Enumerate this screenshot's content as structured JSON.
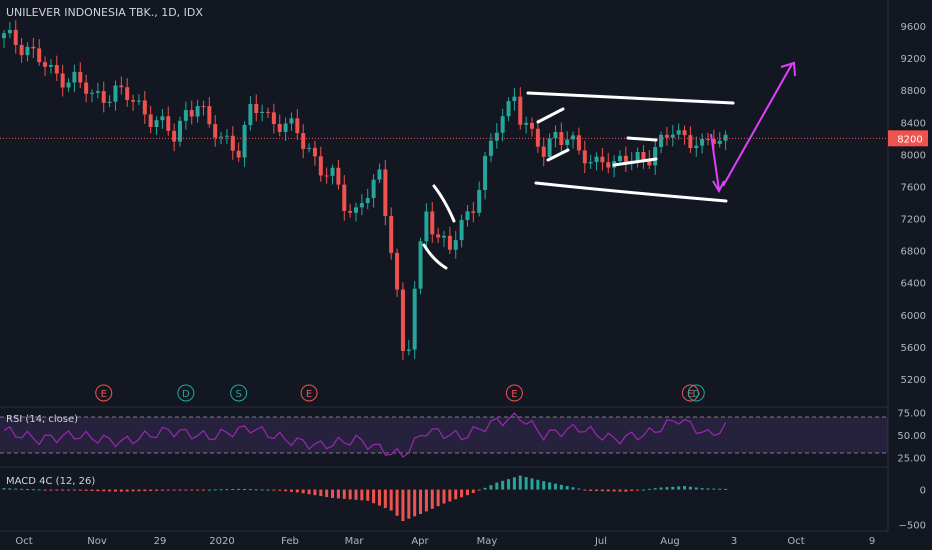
{
  "title": "UNILEVER INDONESIA TBK., 1D, IDX",
  "rsi_label": "RSI (14, close)",
  "macd_label": "MACD 4C (12, 26)",
  "last_price_label": "8200",
  "colors": {
    "background": "#131722",
    "up": "#26a69a",
    "down": "#ef5350",
    "rsi": "#9c27b0",
    "annotation_white": "#ffffff",
    "annotation_magenta": "#e040fb",
    "price_line": "#ef5350"
  },
  "chart_data": [
    {
      "type": "candlestick",
      "x_ticks": [
        "Oct",
        "Nov",
        "29",
        "2020",
        "Feb",
        "Mar",
        "Apr",
        "May",
        "Jul",
        "Aug",
        "3",
        "Oct",
        "9"
      ],
      "y_ticks": [
        5200,
        5600,
        6000,
        6400,
        6800,
        7200,
        7600,
        8000,
        8400,
        8800,
        9200,
        9600
      ],
      "ylim": [
        5000,
        9800
      ],
      "last_price": 8200,
      "path": [
        [
          0,
          9450
        ],
        [
          4,
          9350
        ],
        [
          8,
          9000
        ],
        [
          12,
          8950
        ],
        [
          15,
          8700
        ],
        [
          19,
          8800
        ],
        [
          22,
          8650
        ],
        [
          24,
          8550
        ],
        [
          27,
          8350
        ],
        [
          29,
          8200
        ],
        [
          31,
          8550
        ],
        [
          33,
          8650
        ],
        [
          35,
          8300
        ],
        [
          38,
          8200
        ],
        [
          40,
          8050
        ],
        [
          42,
          8500
        ],
        [
          44,
          8600
        ],
        [
          46,
          8400
        ],
        [
          48,
          8350
        ],
        [
          50,
          8250
        ],
        [
          52,
          8100
        ],
        [
          54,
          7800
        ],
        [
          56,
          7700
        ],
        [
          58,
          7400
        ],
        [
          60,
          7300
        ],
        [
          62,
          7500
        ],
        [
          64,
          7700
        ],
        [
          66,
          6900
        ],
        [
          67,
          6300
        ],
        [
          68,
          5500
        ],
        [
          69,
          5600
        ],
        [
          70,
          6300
        ],
        [
          72,
          7300
        ],
        [
          74,
          7000
        ],
        [
          76,
          6800
        ],
        [
          78,
          7100
        ],
        [
          80,
          7400
        ],
        [
          82,
          7900
        ],
        [
          84,
          8300
        ],
        [
          86,
          8600
        ],
        [
          87,
          8800
        ],
        [
          88,
          8500
        ],
        [
          90,
          8200
        ],
        [
          92,
          8000
        ],
        [
          94,
          8300
        ],
        [
          96,
          8200
        ],
        [
          98,
          8000
        ],
        [
          100,
          7900
        ],
        [
          102,
          8000
        ],
        [
          104,
          7800
        ],
        [
          106,
          7950
        ],
        [
          108,
          8000
        ],
        [
          110,
          7950
        ],
        [
          112,
          8100
        ],
        [
          114,
          8350
        ],
        [
          115,
          8300
        ],
        [
          117,
          8150
        ],
        [
          119,
          8050
        ],
        [
          121,
          8250
        ],
        [
          123,
          8200
        ]
      ],
      "events": [
        {
          "label": "E",
          "type": "earnings",
          "at": 17
        },
        {
          "label": "D",
          "type": "dividend",
          "at": 31
        },
        {
          "label": "S",
          "type": "split",
          "at": 40
        },
        {
          "label": "E",
          "type": "earnings",
          "at": 52
        },
        {
          "label": "E",
          "type": "earnings",
          "at": 87
        },
        {
          "label": "E",
          "type": "earnings",
          "at": 117
        },
        {
          "label": "D",
          "type": "dividend",
          "at": 118
        }
      ]
    },
    {
      "type": "line",
      "name": "RSI (14, close)",
      "y_ticks": [
        25,
        50,
        75
      ],
      "ylim": [
        20,
        80
      ],
      "bands": [
        30,
        70
      ],
      "path": [
        [
          0,
          55
        ],
        [
          6,
          45
        ],
        [
          12,
          50
        ],
        [
          20,
          42
        ],
        [
          28,
          55
        ],
        [
          35,
          48
        ],
        [
          42,
          58
        ],
        [
          48,
          45
        ],
        [
          54,
          38
        ],
        [
          60,
          45
        ],
        [
          66,
          30
        ],
        [
          68,
          28
        ],
        [
          72,
          55
        ],
        [
          78,
          48
        ],
        [
          84,
          65
        ],
        [
          88,
          70
        ],
        [
          92,
          50
        ],
        [
          98,
          58
        ],
        [
          104,
          45
        ],
        [
          110,
          52
        ],
        [
          115,
          68
        ],
        [
          120,
          50
        ],
        [
          123,
          58
        ]
      ]
    },
    {
      "type": "bar",
      "name": "MACD 4C (12, 26)",
      "y_ticks": [
        0,
        -500
      ],
      "ylim": [
        -550,
        280
      ],
      "path": [
        [
          0,
          20
        ],
        [
          10,
          -10
        ],
        [
          20,
          -30
        ],
        [
          30,
          -10
        ],
        [
          40,
          10
        ],
        [
          45,
          0
        ],
        [
          50,
          -40
        ],
        [
          56,
          -120
        ],
        [
          62,
          -160
        ],
        [
          66,
          -300
        ],
        [
          68,
          -450
        ],
        [
          71,
          -350
        ],
        [
          75,
          -200
        ],
        [
          80,
          -50
        ],
        [
          84,
          100
        ],
        [
          88,
          200
        ],
        [
          92,
          120
        ],
        [
          96,
          50
        ],
        [
          100,
          -20
        ],
        [
          106,
          -30
        ],
        [
          112,
          30
        ],
        [
          116,
          50
        ],
        [
          119,
          20
        ],
        [
          123,
          10
        ]
      ]
    }
  ]
}
